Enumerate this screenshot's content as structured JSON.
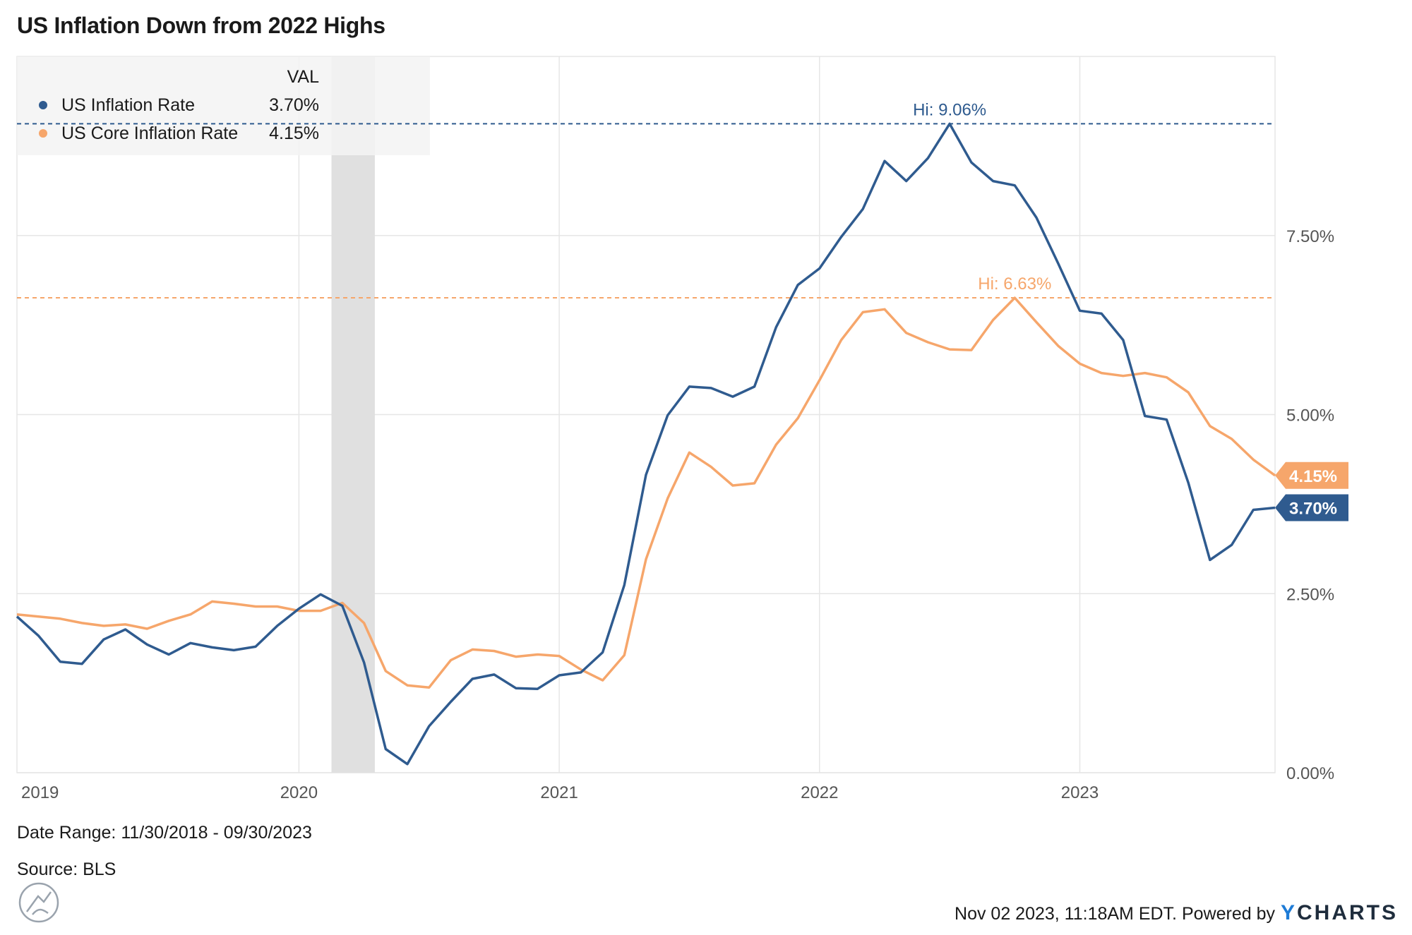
{
  "title": "US Inflation Down from 2022 Highs",
  "legend": {
    "header": "VAL",
    "items": [
      {
        "name": "US Inflation Rate",
        "value": "3.70%",
        "color": "#2f5b8f"
      },
      {
        "name": "US Core Inflation Rate",
        "value": "4.15%",
        "color": "#f6a66b"
      }
    ]
  },
  "footer": {
    "date_range": "Date Range: 11/30/2018 - 09/30/2023",
    "source": "Source: BLS",
    "timestamp": "Nov 02 2023, 11:18AM EDT. Powered by",
    "brand_y": "Y",
    "brand_rest": "CHARTS"
  },
  "chart_data": {
    "type": "line",
    "title": "US Inflation Down from 2022 Highs",
    "x_start": "2018-11-30",
    "x_end": "2023-09-30",
    "x_tick_labels": [
      "2019",
      "2020",
      "2021",
      "2022",
      "2023"
    ],
    "y_tick_labels": [
      "0.00%",
      "2.50%",
      "5.00%",
      "7.50%"
    ],
    "y_ticks": [
      0,
      2.5,
      5,
      7.5
    ],
    "ylim": [
      0,
      10
    ],
    "recession_band": {
      "start_index": 14.5,
      "end_index": 16.5
    },
    "series": [
      {
        "name": "US Inflation Rate",
        "color": "#2f5b8f",
        "last_label": "3.70%",
        "high_label": "Hi: 9.06%",
        "high_value": 9.06,
        "values": [
          2.18,
          1.91,
          1.55,
          1.52,
          1.86,
          2.0,
          1.79,
          1.65,
          1.81,
          1.75,
          1.71,
          1.76,
          2.05,
          2.29,
          2.49,
          2.33,
          1.54,
          0.33,
          0.12,
          0.65,
          0.99,
          1.31,
          1.37,
          1.18,
          1.17,
          1.36,
          1.4,
          1.68,
          2.62,
          4.16,
          4.99,
          5.39,
          5.37,
          5.25,
          5.39,
          6.22,
          6.81,
          7.04,
          7.48,
          7.87,
          8.54,
          8.26,
          8.58,
          9.06,
          8.52,
          8.26,
          8.2,
          7.75,
          7.11,
          6.45,
          6.41,
          6.04,
          4.98,
          4.93,
          4.05,
          2.97,
          3.18,
          3.67,
          3.7
        ]
      },
      {
        "name": "US Core Inflation Rate",
        "color": "#f6a66b",
        "last_label": "4.15%",
        "high_label": "Hi: 6.63%",
        "high_value": 6.63,
        "values": [
          2.21,
          2.18,
          2.15,
          2.09,
          2.05,
          2.07,
          2.01,
          2.12,
          2.21,
          2.39,
          2.36,
          2.32,
          2.32,
          2.26,
          2.26,
          2.37,
          2.09,
          1.42,
          1.22,
          1.19,
          1.57,
          1.72,
          1.7,
          1.62,
          1.65,
          1.63,
          1.44,
          1.29,
          1.64,
          2.98,
          3.83,
          4.47,
          4.27,
          4.01,
          4.04,
          4.58,
          4.95,
          5.48,
          6.04,
          6.43,
          6.47,
          6.14,
          6.01,
          5.91,
          5.9,
          6.32,
          6.63,
          6.29,
          5.96,
          5.71,
          5.58,
          5.54,
          5.58,
          5.52,
          5.31,
          4.84,
          4.66,
          4.37,
          4.15
        ]
      }
    ]
  }
}
